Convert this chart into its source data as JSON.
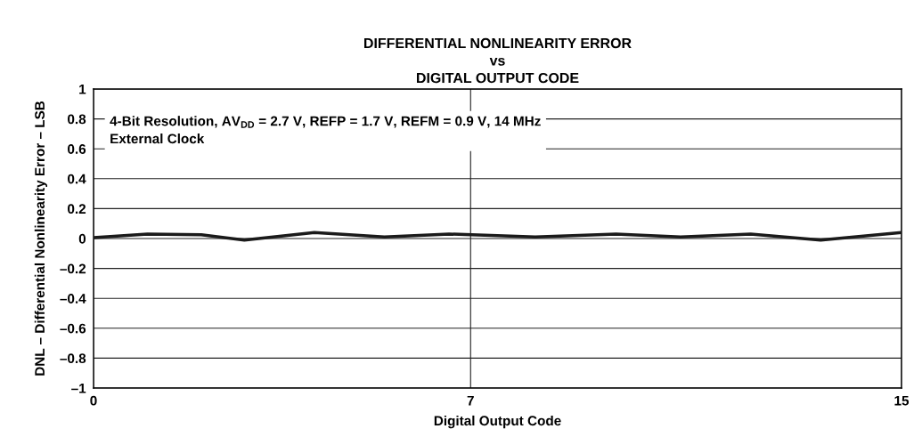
{
  "chart_data": {
    "type": "line",
    "title": "DIFFERENTIAL NONLINEARITY ERROR\nvs\nDIGITAL OUTPUT CODE",
    "xlabel": "Digital Output Code",
    "ylabel": "DNL – Differential Nonlinearity Error – LSB",
    "x": [
      0,
      1.0,
      2.0,
      2.8,
      4.1,
      5.4,
      6.6,
      7.5,
      8.2,
      9.7,
      10.9,
      12.2,
      13.5,
      15
    ],
    "series": [
      {
        "color": "#1a1a1a",
        "values": [
          0.006,
          0.03,
          0.025,
          -0.01,
          0.04,
          0.01,
          0.03,
          0.02,
          0.01,
          0.03,
          0.01,
          0.03,
          -0.01,
          0.04
        ]
      }
    ],
    "xlim": [
      0,
      15
    ],
    "xticks": [
      0,
      7,
      15
    ],
    "ylim": [
      -1,
      1
    ],
    "yticks": [
      {
        "value": -1,
        "label": "–1"
      },
      {
        "value": -0.8,
        "label": "–0.8"
      },
      {
        "value": -0.6,
        "label": "–0.6"
      },
      {
        "value": -0.4,
        "label": "–0.4"
      },
      {
        "value": -0.2,
        "label": "–0.2"
      },
      0,
      0.2,
      0.4,
      0.6,
      0.8,
      1
    ],
    "grid": true,
    "line_style": "solid",
    "marker": "none",
    "annotations": [
      "4-Bit Resolution, AV$_{DD}$ = 2.7 V, REFP = 1.7 V, REFM = 0.9 V, 14 MHz\nExternal Clock"
    ]
  }
}
